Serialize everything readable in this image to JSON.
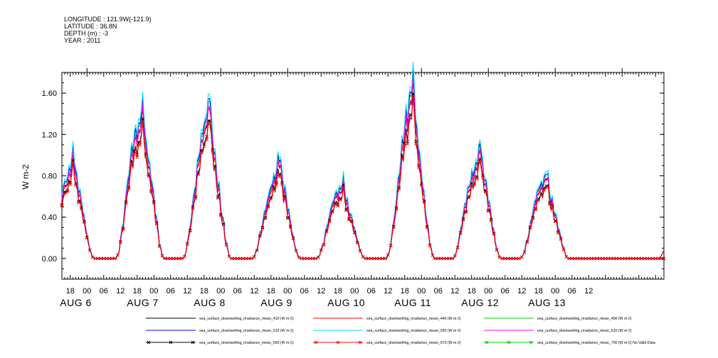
{
  "header": {
    "longitude": "LONGITUDE : 121.9W(-121.9)",
    "latitude": "LATITUDE : 36.8N",
    "depth": "DEPTH (m) : -3",
    "year": "YEAR : 2011"
  },
  "chart_data": {
    "type": "line",
    "title": "",
    "ylabel": "W m-2",
    "xlabel": "",
    "ylim": [
      -0.2,
      1.8
    ],
    "y_ticks": [
      "0.00",
      "0.40",
      "0.80",
      "1.20",
      "1.60"
    ],
    "x_range_hours": [
      -9,
      207
    ],
    "hour_tick_labels": [
      "18",
      "00",
      "06",
      "12",
      "18",
      "00",
      "06",
      "12",
      "18",
      "00",
      "06",
      "12",
      "18",
      "00",
      "06",
      "12",
      "18",
      "00",
      "06",
      "12",
      "18",
      "00",
      "06",
      "12",
      "18",
      "00",
      "06",
      "12",
      "18",
      "00",
      "06",
      "12"
    ],
    "date_labels": [
      "AUG 6",
      "AUG 7",
      "AUG 8",
      "AUG 9",
      "AUG 10",
      "AUG 11",
      "AUG 12",
      "AUG 13"
    ],
    "grid": false,
    "legend_position": "bottom",
    "colors": {
      "410": "#000000",
      "440": "#ff0000",
      "490": "#00cc00",
      "510": "#0000ff",
      "550": "#00e5ee",
      "610": "#ff00ff",
      "650": "#000000",
      "670": "#ff0000",
      "700": "#00cc00"
    },
    "day_peaks": [
      {
        "day": "AUG 6",
        "peak_hour": -5,
        "peak_value": 1.03
      },
      {
        "day": "AUG 7",
        "peak_hour": 20,
        "peak_value": 1.55
      },
      {
        "day": "AUG 8",
        "peak_hour": 44,
        "peak_value": 1.49
      },
      {
        "day": "AUG 9",
        "peak_hour": 69,
        "peak_value": 0.99
      },
      {
        "day": "AUG 10",
        "peak_hour": 92,
        "peak_value": 0.76
      },
      {
        "day": "AUG 11",
        "peak_hour": 117,
        "peak_value": 1.71
      },
      {
        "day": "AUG 12",
        "peak_hour": 141,
        "peak_value": 1.11
      },
      {
        "day": "AUG 13",
        "peak_hour": 165,
        "peak_value": 0.85
      }
    ],
    "series": [
      {
        "name": "sea_surface_downwelling_irradiance_mean_410 (W m-2)",
        "key": "410",
        "scale": 0.96,
        "marker": false
      },
      {
        "name": "sea_surface_downwelling_irradiance_mean_440 (W m-2)",
        "key": "440",
        "scale": 0.95,
        "marker": false
      },
      {
        "name": "sea_surface_downwelling_irradiance_mean_490 (W m-2)",
        "key": "490",
        "scale": 1.0,
        "marker": false
      },
      {
        "name": "sea_surface_downwelling_irradiance_mean_510 (W m-2)",
        "key": "510",
        "scale": 1.02,
        "marker": false
      },
      {
        "name": "sea_surface_downwelling_irradiance_mean_550 (W m-2)",
        "key": "550",
        "scale": 1.05,
        "marker": false
      },
      {
        "name": "sea_surface_downwelling_irradiance_mean_610 (W m-2)",
        "key": "610",
        "scale": 0.97,
        "marker": false
      },
      {
        "name": "sea_surface_downwelling_irradiance_mean_650 (W m-2)",
        "key": "650",
        "scale": 0.88,
        "marker": true
      },
      {
        "name": "sea_surface_downwelling_irradiance_mean_670 (W m-2)",
        "key": "670",
        "scale": 0.86,
        "marker": true
      },
      {
        "name": "sea_surface_downwelling_irradiance_mean_700 (W m-2) No Valid Data",
        "key": "700",
        "scale": 0,
        "marker": true
      }
    ]
  }
}
